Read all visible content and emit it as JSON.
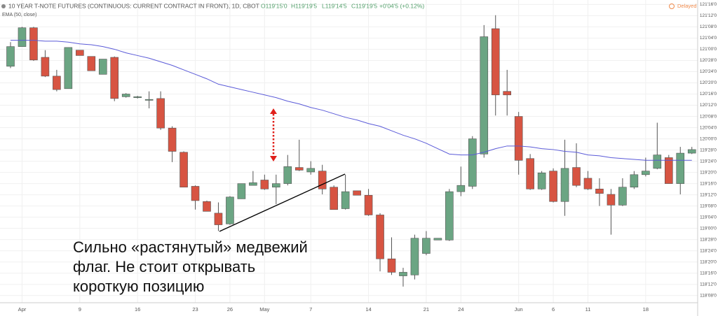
{
  "chart_data": {
    "type": "candlestick",
    "title": "10 YEAR T-NOTE FUTURES (CONTINUOUS: CURRENT CONTRACT IN FRONT), 1D, CBOT",
    "ohlc_labels": [
      "O119'15'0",
      "H119'19'5",
      "L119'14'5",
      "C119'19'5",
      "+0'04'5 (+0.12%)"
    ],
    "status": "Delayed",
    "annotation": [
      "Сильно «растянутый» медвежий",
      "флаг. Не стоит открывать",
      "короткую позицию"
    ],
    "up_color": "#6ba583",
    "down_color": "#d75442",
    "categories": [
      null,
      "Apr",
      null,
      null,
      null,
      null,
      "9",
      null,
      null,
      null,
      null,
      "16",
      null,
      null,
      null,
      null,
      "23",
      null,
      null,
      "26",
      null,
      null,
      "May",
      null,
      null,
      null,
      "7",
      null,
      null,
      null,
      null,
      "14",
      null,
      null,
      null,
      null,
      "21",
      null,
      null,
      "24",
      null,
      null,
      null,
      null,
      "Jun",
      null,
      null,
      "6",
      null,
      null,
      "11",
      null,
      null,
      null,
      null,
      "18",
      null,
      null,
      null,
      null
    ],
    "open": [
      120.81,
      121.03,
      121.24,
      120.91,
      120.7,
      120.56,
      120.99,
      120.92,
      120.72,
      120.91,
      120.47,
      120.46,
      120.43,
      120.45,
      120.12,
      119.85,
      119.47,
      119.3,
      119.17,
      119.05,
      119.33,
      119.48,
      119.54,
      119.46,
      119.5,
      119.68,
      119.63,
      119.64,
      119.46,
      119.22,
      119.42,
      119.37,
      119.15,
      118.66,
      118.47,
      118.48,
      118.72,
      118.87,
      118.87,
      119.41,
      119.47,
      119.83,
      121.23,
      120.53,
      120.25,
      119.78,
      119.44,
      119.64,
      119.3,
      119.68,
      119.56,
      119.44,
      119.38,
      119.26,
      119.46,
      119.6,
      119.67,
      119.79,
      119.5,
      119.84
    ],
    "high": [
      121.08,
      121.25,
      121.25,
      120.99,
      120.77,
      121.02,
      120.99,
      120.92,
      120.89,
      120.92,
      120.51,
      120.48,
      120.53,
      120.53,
      120.14,
      119.86,
      119.48,
      119.31,
      119.29,
      119.36,
      119.5,
      119.64,
      119.6,
      119.6,
      119.82,
      119.99,
      119.75,
      119.71,
      119.48,
      119.6,
      119.42,
      119.44,
      119.17,
      118.9,
      118.56,
      118.93,
      118.97,
      118.89,
      119.44,
      119.69,
      120.03,
      121.27,
      121.38,
      120.77,
      120.3,
      119.83,
      119.64,
      119.67,
      119.99,
      119.95,
      119.64,
      119.56,
      119.44,
      119.56,
      119.64,
      119.79,
      120.18,
      119.82,
      119.91,
      119.91
    ],
    "low": [
      120.79,
      121.03,
      120.87,
      120.69,
      120.53,
      120.56,
      120.93,
      120.76,
      120.72,
      120.42,
      120.46,
      120.45,
      120.34,
      120.1,
      119.74,
      119.46,
      119.21,
      119.19,
      118.97,
      119.04,
      119.33,
      119.48,
      119.43,
      119.27,
      119.48,
      119.64,
      119.6,
      119.38,
      119.21,
      119.21,
      119.37,
      119.14,
      118.52,
      118.48,
      118.35,
      118.43,
      118.7,
      118.87,
      118.86,
      119.36,
      119.44,
      119.79,
      120.26,
      120.26,
      119.6,
      119.43,
      119.43,
      119.29,
      119.14,
      119.46,
      119.43,
      119.25,
      118.93,
      119.25,
      119.44,
      119.58,
      119.66,
      119.5,
      119.38,
      119.83
    ],
    "close": [
      121.03,
      121.24,
      120.88,
      120.7,
      120.55,
      121.02,
      120.93,
      120.76,
      120.89,
      120.45,
      120.5,
      120.47,
      120.44,
      120.12,
      119.86,
      119.46,
      119.31,
      119.19,
      119.04,
      119.35,
      119.5,
      119.51,
      119.44,
      119.5,
      119.69,
      119.65,
      119.67,
      119.44,
      119.21,
      119.41,
      119.37,
      119.15,
      118.66,
      118.51,
      118.51,
      118.89,
      118.89,
      118.89,
      119.41,
      119.48,
      120.0,
      121.14,
      120.49,
      120.49,
      119.76,
      119.44,
      119.62,
      119.3,
      119.67,
      119.48,
      119.44,
      119.39,
      119.26,
      119.46,
      119.6,
      119.64,
      119.82,
      119.5,
      119.84,
      119.88
    ],
    "series": [
      {
        "name": "EMA (50, close)",
        "color": "#5a5ad8",
        "values": [
          121.1,
          121.1,
          121.1,
          121.09,
          121.09,
          121.08,
          121.06,
          121.05,
          121.03,
          121.0,
          120.96,
          120.93,
          120.9,
          120.86,
          120.82,
          120.77,
          120.72,
          120.67,
          120.61,
          120.58,
          120.55,
          120.52,
          120.49,
          120.46,
          120.42,
          120.39,
          120.35,
          120.32,
          120.28,
          120.24,
          120.21,
          120.17,
          120.14,
          120.09,
          120.04,
          120.0,
          119.95,
          119.89,
          119.83,
          119.82,
          119.82,
          119.85,
          119.89,
          119.92,
          119.92,
          119.91,
          119.89,
          119.88,
          119.86,
          119.85,
          119.82,
          119.81,
          119.79,
          119.78,
          119.77,
          119.76,
          119.76,
          119.76,
          119.76,
          119.76
        ]
      }
    ],
    "ylim": [
      118.17,
      121.55
    ],
    "yticks": [
      {
        "value": 121.5,
        "label": "121'16'0"
      },
      {
        "value": 121.375,
        "label": "121'12'0"
      },
      {
        "value": 121.25,
        "label": "121'08'0"
      },
      {
        "value": 121.125,
        "label": "121'04'0"
      },
      {
        "value": 121.0,
        "label": "121'00'0"
      },
      {
        "value": 120.875,
        "label": "120'28'0"
      },
      {
        "value": 120.75,
        "label": "120'24'0"
      },
      {
        "value": 120.625,
        "label": "120'20'0"
      },
      {
        "value": 120.5,
        "label": "120'16'0"
      },
      {
        "value": 120.375,
        "label": "120'12'0"
      },
      {
        "value": 120.25,
        "label": "120'08'0"
      },
      {
        "value": 120.125,
        "label": "120'04'0"
      },
      {
        "value": 120.0,
        "label": "120'00'0"
      },
      {
        "value": 119.875,
        "label": "119'28'0"
      },
      {
        "value": 119.75,
        "label": "119'24'0"
      },
      {
        "value": 119.625,
        "label": "119'20'0"
      },
      {
        "value": 119.5,
        "label": "119'16'0"
      },
      {
        "value": 119.375,
        "label": "119'12'0"
      },
      {
        "value": 119.25,
        "label": "119'08'0"
      },
      {
        "value": 119.125,
        "label": "119'04'0"
      },
      {
        "value": 119.0,
        "label": "119'00'0"
      },
      {
        "value": 118.875,
        "label": "118'28'0"
      },
      {
        "value": 118.75,
        "label": "118'24'0"
      },
      {
        "value": 118.625,
        "label": "118'20'0"
      },
      {
        "value": 118.5,
        "label": "118'16'0"
      },
      {
        "value": 118.375,
        "label": "118'12'0"
      },
      {
        "value": 118.25,
        "label": "118'08'0"
      }
    ],
    "grid": true
  }
}
